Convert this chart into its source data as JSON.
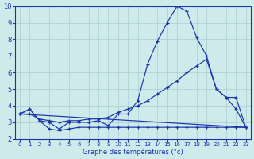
{
  "xlabel": "Graphe des températures (°c)",
  "background_color": "#ceeaea",
  "grid_color": "#a8cccc",
  "line_color": "#1a35aa",
  "xlim": [
    -0.5,
    23.5
  ],
  "ylim": [
    2,
    10
  ],
  "yticks": [
    2,
    3,
    4,
    5,
    6,
    7,
    8,
    9,
    10
  ],
  "xticks": [
    0,
    1,
    2,
    3,
    4,
    5,
    6,
    7,
    8,
    9,
    10,
    11,
    12,
    13,
    14,
    15,
    16,
    17,
    18,
    19,
    20,
    21,
    22,
    23
  ],
  "line1_x": [
    0,
    1,
    2,
    3,
    4,
    5,
    6,
    7,
    8,
    9,
    10,
    11,
    12,
    13,
    14,
    15,
    16,
    17,
    18,
    19,
    20,
    21,
    22,
    23
  ],
  "line1_y": [
    3.5,
    3.8,
    3.1,
    3.0,
    2.6,
    3.0,
    3.0,
    3.0,
    3.1,
    2.8,
    3.5,
    3.5,
    4.3,
    6.5,
    7.9,
    9.0,
    10.0,
    9.7,
    8.1,
    7.0,
    5.0,
    4.5,
    3.8,
    2.7
  ],
  "line2_x": [
    0,
    1,
    2,
    3,
    4,
    5,
    6,
    7,
    8,
    9,
    10,
    11,
    12,
    13,
    14,
    15,
    16,
    17,
    18,
    19,
    20,
    21,
    22,
    23
  ],
  "line2_y": [
    3.5,
    3.5,
    3.2,
    3.1,
    3.0,
    3.1,
    3.1,
    3.2,
    3.2,
    3.3,
    3.6,
    3.8,
    4.0,
    4.3,
    4.7,
    5.1,
    5.5,
    6.0,
    6.4,
    6.8,
    5.0,
    4.5,
    4.5,
    2.7
  ],
  "line3_x": [
    0,
    1,
    2,
    3,
    4,
    5,
    6,
    7,
    8,
    9,
    10,
    11,
    12,
    13,
    14,
    15,
    16,
    17,
    18,
    19,
    20,
    21,
    22,
    23
  ],
  "line3_y": [
    3.5,
    3.8,
    3.1,
    2.6,
    2.5,
    2.6,
    2.7,
    2.7,
    2.7,
    2.7,
    2.7,
    2.7,
    2.7,
    2.7,
    2.7,
    2.7,
    2.7,
    2.7,
    2.7,
    2.7,
    2.7,
    2.7,
    2.7,
    2.7
  ],
  "line4_x": [
    0,
    23
  ],
  "line4_y": [
    3.5,
    2.7
  ]
}
